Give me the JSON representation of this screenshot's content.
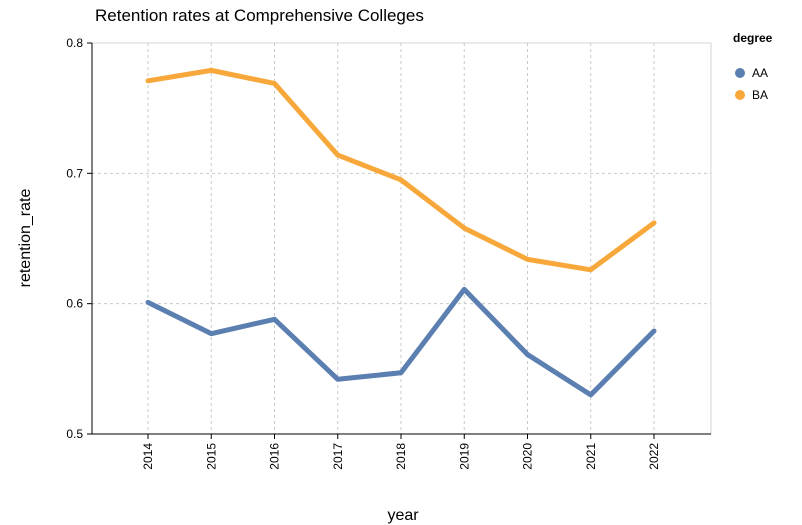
{
  "chart_data": {
    "type": "line",
    "title": "Retention rates at Comprehensive Colleges",
    "xlabel": "year",
    "ylabel": "retention_rate",
    "x": [
      "2014",
      "2015",
      "2016",
      "2017",
      "2018",
      "2019",
      "2020",
      "2021",
      "2022"
    ],
    "ylim": [
      0.5,
      0.8
    ],
    "yticks": [
      "0.5",
      "0.6",
      "0.7",
      "0.8"
    ],
    "grid": true,
    "legend_title": "degree",
    "legend_position": "right",
    "series": [
      {
        "name": "AA",
        "color": "#5b7fb1",
        "values": [
          0.601,
          0.577,
          0.588,
          0.542,
          0.547,
          0.611,
          0.561,
          0.53,
          0.579
        ]
      },
      {
        "name": "BA",
        "color": "#f8a83b",
        "values": [
          0.771,
          0.779,
          0.769,
          0.714,
          0.695,
          0.658,
          0.634,
          0.626,
          0.662
        ]
      }
    ]
  }
}
